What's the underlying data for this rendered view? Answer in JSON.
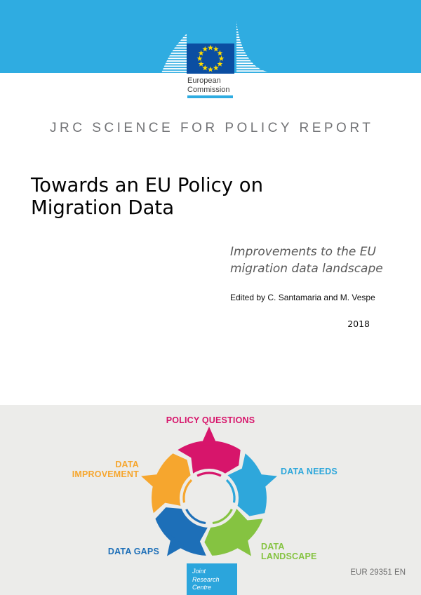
{
  "logo": {
    "org_line1": "European",
    "org_line2": "Commission"
  },
  "series": "JRC SCIENCE FOR POLICY REPORT",
  "title": {
    "line1": "Towards an EU Policy on",
    "line2": "Migration Data"
  },
  "subtitle": {
    "line1": "Improvements to the EU",
    "line2": "migration data landscape"
  },
  "edited_by": "Edited by C. Santamaria and M. Vespe",
  "year": "2018",
  "footer": {
    "jrc_line1": "Joint",
    "jrc_line2": "Research",
    "jrc_line3": "Centre",
    "report_number": "EUR 29351 EN"
  },
  "colors": {
    "band_cyan": "#2FACE1",
    "panel_gray": "#ECECEA",
    "flag_blue": "#0B4EA2",
    "star_yellow": "#FFDD00",
    "jrc_box_cyan": "#2BA5DC",
    "series_text_gray": "#727376",
    "subtitle_gray": "#595959",
    "eur_text_gray": "#6F6F6F"
  },
  "diagram": {
    "type": "cycle",
    "segments": [
      {
        "name": "policy-questions",
        "label_lines": [
          "POLICY QUESTIONS"
        ],
        "color": "#D7156B",
        "a0": -33,
        "a1": 33,
        "arrow": 0
      },
      {
        "name": "data-needs",
        "label_lines": [
          "DATA NEEDS"
        ],
        "color": "#2EA7DB",
        "a0": 39,
        "a1": 105,
        "arrow": 72
      },
      {
        "name": "data-landscape",
        "label_lines": [
          "DATA",
          "LANDSCAPE"
        ],
        "color": "#85C341",
        "a0": 111,
        "a1": 177,
        "arrow": 144
      },
      {
        "name": "data-gaps",
        "label_lines": [
          "DATA GAPS"
        ],
        "color": "#1D6FB8",
        "a0": 183,
        "a1": 249,
        "arrow": 216
      },
      {
        "name": "data-improvement",
        "label_lines": [
          "DATA",
          "IMPROVEMENT"
        ],
        "color": "#F6A62E",
        "a0": 255,
        "a1": 321,
        "arrow": 288
      }
    ]
  }
}
